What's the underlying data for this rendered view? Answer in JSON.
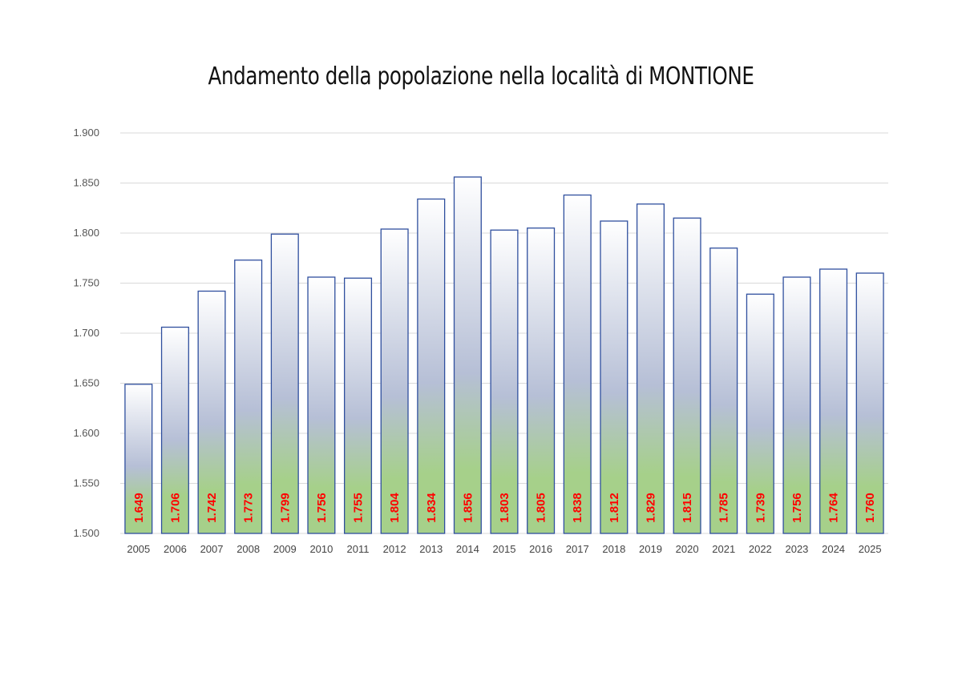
{
  "chart_data": {
    "type": "bar",
    "title": "Andamento della popolazione nella località di MONTIONE",
    "xlabel": "",
    "ylabel": "",
    "categories": [
      "2005",
      "2006",
      "2007",
      "2008",
      "2009",
      "2010",
      "2011",
      "2012",
      "2013",
      "2014",
      "2015",
      "2016",
      "2017",
      "2018",
      "2019",
      "2020",
      "2021",
      "2022",
      "2023",
      "2024",
      "2025"
    ],
    "values": [
      1649,
      1706,
      1742,
      1773,
      1799,
      1756,
      1755,
      1804,
      1834,
      1856,
      1803,
      1805,
      1838,
      1812,
      1829,
      1815,
      1785,
      1739,
      1756,
      1764,
      1760
    ],
    "data_labels": [
      "1.649",
      "1.706",
      "1.742",
      "1.773",
      "1.799",
      "1.756",
      "1.755",
      "1.804",
      "1.834",
      "1.856",
      "1.803",
      "1.805",
      "1.838",
      "1.812",
      "1.829",
      "1.815",
      "1.785",
      "1.739",
      "1.756",
      "1.764",
      "1.760"
    ],
    "ylim": [
      1500,
      1900
    ],
    "yticks": [
      1500,
      1550,
      1600,
      1650,
      1700,
      1750,
      1800,
      1850,
      1900
    ],
    "ytick_labels": [
      "1.500",
      "1.550",
      "1.600",
      "1.650",
      "1.700",
      "1.750",
      "1.800",
      "1.850",
      "1.900"
    ],
    "grid": true,
    "legend": "none",
    "colors": {
      "bar_border": "#2f4f9e",
      "bar_top": "#ffffff",
      "bar_mid": "#b6bfd6",
      "bar_bottom": "#a6d08a",
      "label": "#ff0000",
      "grid": "#d9d9d9"
    }
  }
}
